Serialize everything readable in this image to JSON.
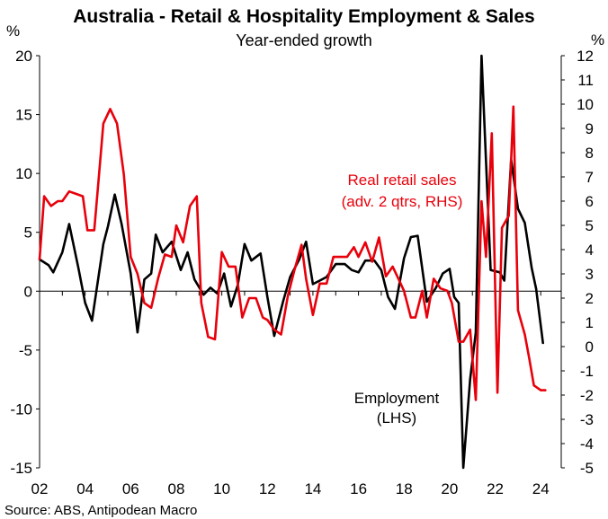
{
  "chart_data": {
    "type": "line",
    "title": "Australia - Retail & Hospitality Employment & Sales",
    "subtitle": "Year-ended growth",
    "y_left_unit": "%",
    "y_right_unit": "%",
    "y_left_lim": [
      -15,
      20
    ],
    "y_right_lim": [
      -5,
      12
    ],
    "y_left_ticks": [
      "20",
      "15",
      "10",
      "5",
      "0",
      "-5",
      "-10",
      "-15"
    ],
    "y_right_ticks": [
      "12",
      "11",
      "10",
      "9",
      "8",
      "7",
      "6",
      "5",
      "4",
      "3",
      "2",
      "1",
      "0",
      "-1",
      "-2",
      "-3",
      "-4",
      "-5"
    ],
    "x_lim": [
      2002,
      2024.9
    ],
    "x_ticks": [
      "02",
      "04",
      "06",
      "08",
      "10",
      "12",
      "14",
      "16",
      "18",
      "20",
      "22",
      "24"
    ],
    "grid": false,
    "series": [
      {
        "name": "Employment (LHS)",
        "label_lines": [
          "Employment",
          "(LHS)"
        ],
        "axis": "left",
        "color": "#000000",
        "x": [
          2002.0,
          2002.4,
          2002.6,
          2003.0,
          2003.3,
          2003.7,
          2004.0,
          2004.3,
          2004.8,
          2005.0,
          2005.3,
          2005.6,
          2006.0,
          2006.3,
          2006.6,
          2006.9,
          2007.1,
          2007.4,
          2007.8,
          2008.2,
          2008.5,
          2008.8,
          2009.2,
          2009.5,
          2009.8,
          2010.1,
          2010.4,
          2010.7,
          2011.0,
          2011.3,
          2011.7,
          2012.0,
          2012.3,
          2012.7,
          2013.0,
          2013.4,
          2013.7,
          2014.0,
          2014.3,
          2014.6,
          2015.0,
          2015.4,
          2015.7,
          2016.0,
          2016.3,
          2016.7,
          2017.0,
          2017.3,
          2017.6,
          2018.0,
          2018.3,
          2018.6,
          2019.0,
          2019.4,
          2019.7,
          2020.0,
          2020.2,
          2020.4,
          2020.6,
          2020.9,
          2021.15,
          2021.4,
          2021.8,
          2022.2,
          2022.4,
          2022.7,
          2023.0,
          2023.3,
          2023.6,
          2023.8,
          2024.1
        ],
        "values": [
          2.7,
          2.2,
          1.6,
          3.3,
          5.7,
          2.0,
          -1.0,
          -2.5,
          4.0,
          5.5,
          8.2,
          5.7,
          1.5,
          -3.5,
          1.0,
          1.5,
          4.8,
          3.3,
          4.2,
          1.8,
          3.3,
          1.0,
          -0.3,
          0.3,
          -0.2,
          1.5,
          -1.3,
          0.5,
          4.0,
          2.6,
          3.2,
          -0.5,
          -3.8,
          -0.8,
          1.2,
          2.7,
          4.2,
          0.6,
          0.9,
          1.2,
          2.3,
          2.3,
          1.8,
          1.6,
          2.6,
          2.6,
          1.8,
          -0.5,
          -1.5,
          2.8,
          4.6,
          4.7,
          -0.9,
          0.3,
          1.5,
          1.9,
          -0.5,
          -1.0,
          -15.0,
          -7.5,
          -3.5,
          20.0,
          1.8,
          1.6,
          0.9,
          11.2,
          7.0,
          5.8,
          2.0,
          0.2,
          -4.4
        ]
      },
      {
        "name": "Real retail sales (adv. 2 qtrs, RHS)",
        "label_lines": [
          "Real retail sales",
          "(adv. 2 qtrs, RHS)"
        ],
        "axis": "right",
        "color": "#e8000b",
        "x": [
          2002.0,
          2002.2,
          2002.5,
          2002.8,
          2003.0,
          2003.3,
          2003.6,
          2003.9,
          2004.1,
          2004.4,
          2004.6,
          2004.8,
          2005.1,
          2005.4,
          2005.7,
          2006.0,
          2006.3,
          2006.6,
          2006.9,
          2007.2,
          2007.5,
          2007.8,
          2008.0,
          2008.3,
          2008.6,
          2008.9,
          2009.1,
          2009.4,
          2009.7,
          2010.0,
          2010.3,
          2010.6,
          2010.9,
          2011.2,
          2011.5,
          2011.8,
          2012.0,
          2012.3,
          2012.6,
          2012.9,
          2013.2,
          2013.5,
          2013.7,
          2014.0,
          2014.3,
          2014.6,
          2014.9,
          2015.2,
          2015.5,
          2015.8,
          2016.0,
          2016.3,
          2016.6,
          2016.9,
          2017.2,
          2017.5,
          2017.8,
          2018.0,
          2018.3,
          2018.5,
          2018.8,
          2019.0,
          2019.3,
          2019.6,
          2019.9,
          2020.1,
          2020.4,
          2020.6,
          2020.9,
          2021.15,
          2021.4,
          2021.6,
          2021.85,
          2022.1,
          2022.3,
          2022.6,
          2022.8,
          2023.0,
          2023.3,
          2023.5,
          2023.7,
          2024.0,
          2024.2
        ],
        "values": [
          3.6,
          6.2,
          5.8,
          6.0,
          6.0,
          6.4,
          6.3,
          6.2,
          4.8,
          4.8,
          7.0,
          9.2,
          9.8,
          9.2,
          7.1,
          3.7,
          3.0,
          1.8,
          1.6,
          2.8,
          3.8,
          3.7,
          5.0,
          4.3,
          5.8,
          6.2,
          1.8,
          0.4,
          0.3,
          3.9,
          3.3,
          3.3,
          1.2,
          2.0,
          2.0,
          1.2,
          1.1,
          0.7,
          0.5,
          2.1,
          3.2,
          4.2,
          2.8,
          1.3,
          2.6,
          2.6,
          3.7,
          3.7,
          3.7,
          4.1,
          3.7,
          4.3,
          3.5,
          4.5,
          2.9,
          3.3,
          2.7,
          2.3,
          1.2,
          1.2,
          2.3,
          1.2,
          2.8,
          2.4,
          2.3,
          1.8,
          0.2,
          0.2,
          0.7,
          -2.2,
          6.0,
          3.7,
          8.8,
          -1.9,
          4.9,
          5.4,
          9.9,
          1.5,
          0.5,
          -0.5,
          -1.6,
          -1.8,
          -1.8
        ]
      }
    ],
    "source": "Source: ABS, Antipodean Macro"
  }
}
